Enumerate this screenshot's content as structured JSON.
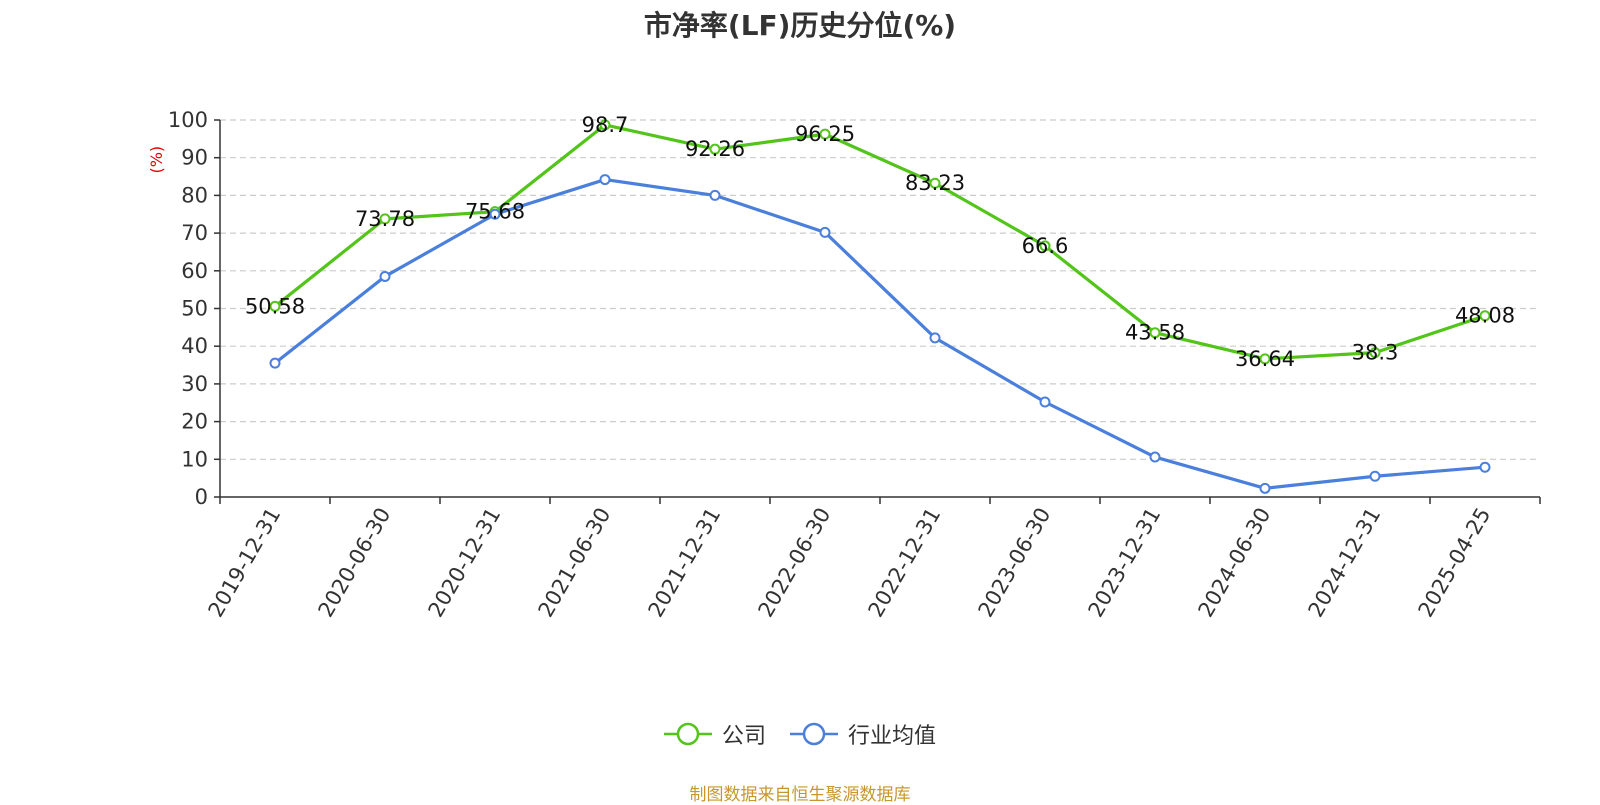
{
  "chart_data": {
    "type": "line",
    "title": "市净率(LF)历史分位(%)",
    "ylabel": "(%)",
    "xlabel": "",
    "ylim": [
      0,
      100
    ],
    "yticks": [
      0,
      10,
      20,
      30,
      40,
      50,
      60,
      70,
      80,
      90,
      100
    ],
    "categories": [
      "2019-12-31",
      "2020-06-30",
      "2020-12-31",
      "2021-06-30",
      "2021-12-31",
      "2022-06-30",
      "2022-12-31",
      "2023-06-30",
      "2023-12-31",
      "2024-06-30",
      "2024-12-31",
      "2025-04-25"
    ],
    "series": [
      {
        "name": "公司",
        "color": "#52c41a",
        "show_labels": true,
        "values": [
          50.58,
          73.78,
          75.68,
          98.7,
          92.26,
          96.25,
          83.23,
          66.6,
          43.58,
          36.64,
          38.3,
          48.08
        ]
      },
      {
        "name": "行业均值",
        "color": "#4a7fdc",
        "show_labels": false,
        "values": [
          35.5,
          58.5,
          75.0,
          84.2,
          80.0,
          70.2,
          42.2,
          25.2,
          10.6,
          2.3,
          5.5,
          7.9
        ]
      }
    ],
    "grid": true,
    "legend_position": "bottom-center"
  },
  "source_text": "制图数据来自恒生聚源数据库"
}
